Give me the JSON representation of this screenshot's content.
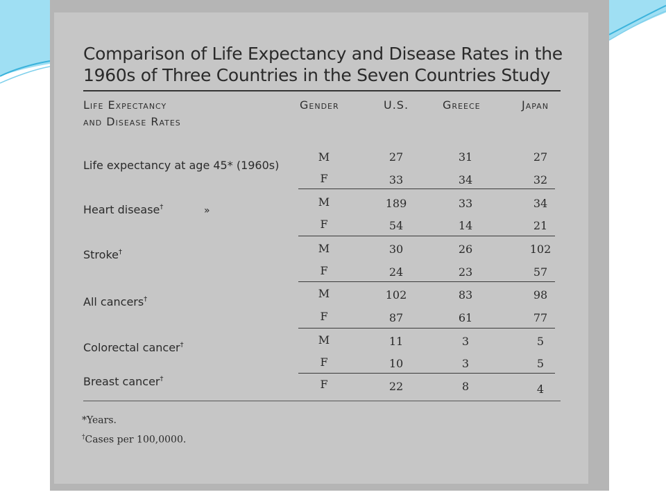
{
  "title_line1": "Comparison of Life Expectancy and Disease Rates in the",
  "title_line2": "1960s of Three Countries in the Seven Countries Study",
  "headers": {
    "col1_line1": "Life Expectancy",
    "col1_line2": "and Disease Rates",
    "gender": "Gender",
    "us": "U.S.",
    "greece": "Greece",
    "japan": "Japan"
  },
  "groups": [
    {
      "label": "Life expectancy at age 45* (1960s)",
      "mark": "",
      "rows": [
        {
          "g": "M",
          "us": "27",
          "gr": "31",
          "jp": "27"
        },
        {
          "g": "F",
          "us": "33",
          "gr": "34",
          "jp": "32"
        }
      ]
    },
    {
      "label": "Heart disease",
      "mark": "†",
      "rows": [
        {
          "g": "M",
          "us": "189",
          "gr": "33",
          "jp": "34"
        },
        {
          "g": "F",
          "us": "54",
          "gr": "14",
          "jp": "21"
        }
      ]
    },
    {
      "label": "Stroke",
      "mark": "†",
      "rows": [
        {
          "g": "M",
          "us": "30",
          "gr": "26",
          "jp": "102"
        },
        {
          "g": "F",
          "us": "24",
          "gr": "23",
          "jp": "57"
        }
      ]
    },
    {
      "label": "All cancers",
      "mark": "†",
      "rows": [
        {
          "g": "M",
          "us": "102",
          "gr": "83",
          "jp": "98"
        },
        {
          "g": "F",
          "us": "87",
          "gr": "61",
          "jp": "77"
        }
      ]
    },
    {
      "label": "Colorectal cancer",
      "mark": "†",
      "rows": [
        {
          "g": "M",
          "us": "11",
          "gr": "3",
          "jp": "5"
        },
        {
          "g": "F",
          "us": "10",
          "gr": "3",
          "jp": "5"
        }
      ]
    },
    {
      "label": "Breast cancer",
      "mark": "†",
      "rows": [
        {
          "g": "F",
          "us": "22",
          "gr": "8",
          "jp": "4"
        }
      ]
    }
  ],
  "stray_mark": "»",
  "footnotes": [
    {
      "mark": "",
      "text": "*Years."
    },
    {
      "mark": "†",
      "text": "Cases per 100,0000."
    }
  ],
  "colors": {
    "page": "#c6c6c6",
    "scan_border": "#b5b5b5",
    "deco_blue": "#5ec4e6"
  }
}
